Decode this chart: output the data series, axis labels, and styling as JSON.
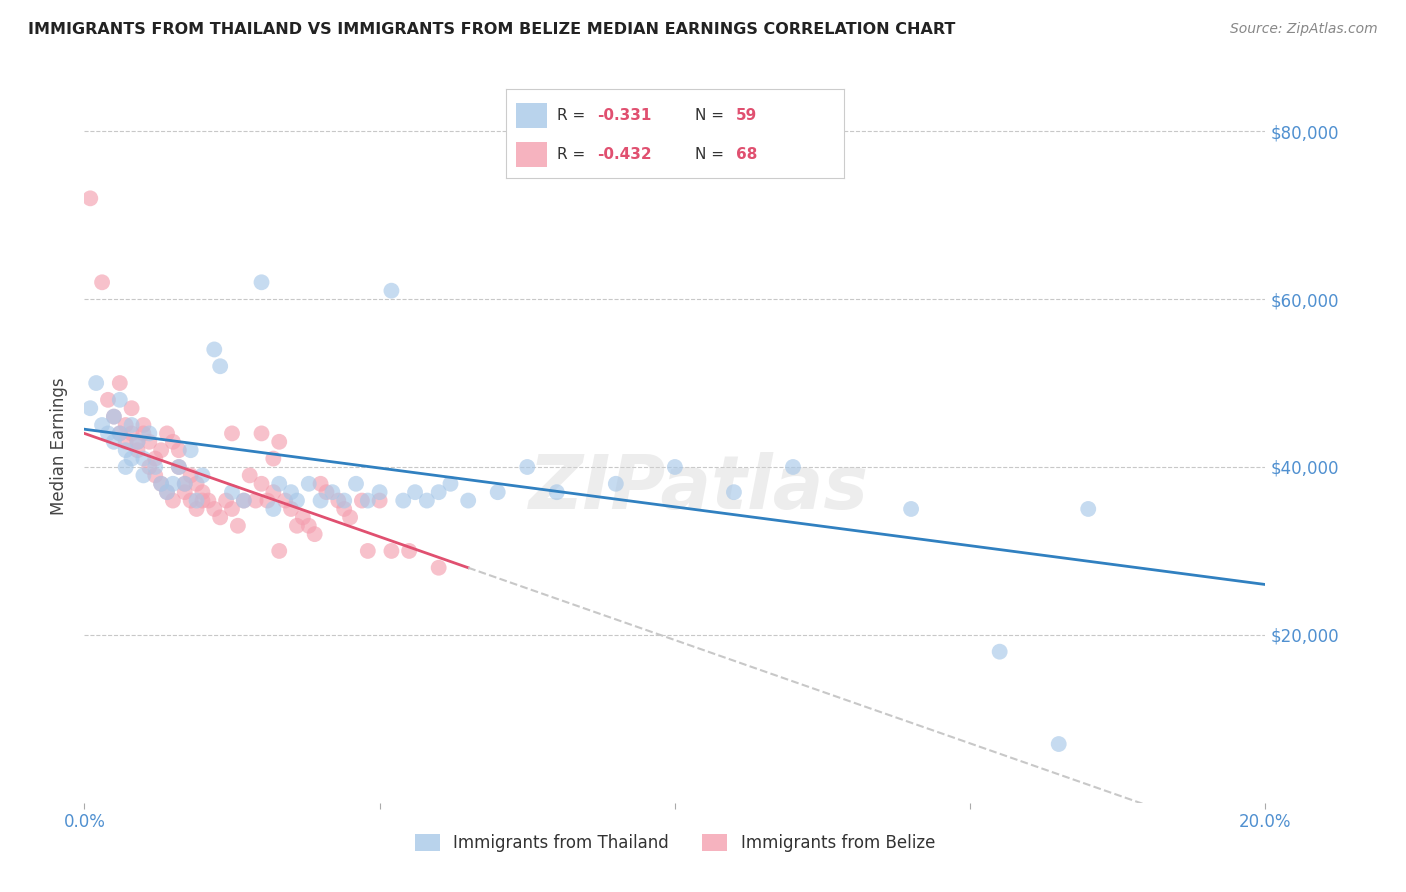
{
  "title": "IMMIGRANTS FROM THAILAND VS IMMIGRANTS FROM BELIZE MEDIAN EARNINGS CORRELATION CHART",
  "source": "Source: ZipAtlas.com",
  "ylabel": "Median Earnings",
  "xlim": [
    0.0,
    0.2
  ],
  "ylim": [
    0,
    85000
  ],
  "yticks": [
    20000,
    40000,
    60000,
    80000
  ],
  "ytick_labels": [
    "$20,000",
    "$40,000",
    "$60,000",
    "$80,000"
  ],
  "xticks": [
    0.0,
    0.05,
    0.1,
    0.15,
    0.2
  ],
  "xtick_labels": [
    "0.0%",
    "",
    "",
    "",
    "20.0%"
  ],
  "thailand_color": "#a8c8e8",
  "belize_color": "#f4a0b0",
  "thailand_line_color": "#3080c0",
  "belize_line_color": "#e05070",
  "trend_ext_color": "#c8c8c8",
  "legend_thailand": "Immigrants from Thailand",
  "legend_belize": "Immigrants from Belize",
  "R_thailand": -0.331,
  "N_thailand": 59,
  "R_belize": -0.432,
  "N_belize": 68,
  "watermark": "ZIPatlas",
  "background_color": "#ffffff",
  "grid_color": "#c8c8c8",
  "title_color": "#222222",
  "axis_color": "#5090d0",
  "thailand_points": [
    [
      0.001,
      47000
    ],
    [
      0.002,
      50000
    ],
    [
      0.003,
      45000
    ],
    [
      0.004,
      44000
    ],
    [
      0.005,
      46000
    ],
    [
      0.005,
      43000
    ],
    [
      0.006,
      48000
    ],
    [
      0.006,
      44000
    ],
    [
      0.007,
      42000
    ],
    [
      0.007,
      40000
    ],
    [
      0.008,
      45000
    ],
    [
      0.008,
      41000
    ],
    [
      0.009,
      43000
    ],
    [
      0.01,
      41000
    ],
    [
      0.01,
      39000
    ],
    [
      0.011,
      44000
    ],
    [
      0.012,
      40000
    ],
    [
      0.013,
      38000
    ],
    [
      0.014,
      37000
    ],
    [
      0.015,
      38000
    ],
    [
      0.016,
      40000
    ],
    [
      0.017,
      38000
    ],
    [
      0.018,
      42000
    ],
    [
      0.019,
      36000
    ],
    [
      0.02,
      39000
    ],
    [
      0.022,
      54000
    ],
    [
      0.023,
      52000
    ],
    [
      0.025,
      37000
    ],
    [
      0.027,
      36000
    ],
    [
      0.03,
      62000
    ],
    [
      0.032,
      35000
    ],
    [
      0.033,
      38000
    ],
    [
      0.035,
      37000
    ],
    [
      0.036,
      36000
    ],
    [
      0.038,
      38000
    ],
    [
      0.04,
      36000
    ],
    [
      0.042,
      37000
    ],
    [
      0.044,
      36000
    ],
    [
      0.046,
      38000
    ],
    [
      0.048,
      36000
    ],
    [
      0.05,
      37000
    ],
    [
      0.052,
      61000
    ],
    [
      0.054,
      36000
    ],
    [
      0.056,
      37000
    ],
    [
      0.058,
      36000
    ],
    [
      0.06,
      37000
    ],
    [
      0.062,
      38000
    ],
    [
      0.065,
      36000
    ],
    [
      0.07,
      37000
    ],
    [
      0.075,
      40000
    ],
    [
      0.08,
      37000
    ],
    [
      0.09,
      38000
    ],
    [
      0.1,
      40000
    ],
    [
      0.11,
      37000
    ],
    [
      0.12,
      40000
    ],
    [
      0.14,
      35000
    ],
    [
      0.155,
      18000
    ],
    [
      0.165,
      7000
    ],
    [
      0.17,
      35000
    ]
  ],
  "belize_points": [
    [
      0.001,
      72000
    ],
    [
      0.003,
      62000
    ],
    [
      0.004,
      48000
    ],
    [
      0.005,
      46000
    ],
    [
      0.006,
      50000
    ],
    [
      0.006,
      44000
    ],
    [
      0.007,
      45000
    ],
    [
      0.007,
      43000
    ],
    [
      0.008,
      47000
    ],
    [
      0.008,
      44000
    ],
    [
      0.009,
      42000
    ],
    [
      0.009,
      43000
    ],
    [
      0.01,
      45000
    ],
    [
      0.01,
      44000
    ],
    [
      0.011,
      43000
    ],
    [
      0.011,
      40000
    ],
    [
      0.012,
      41000
    ],
    [
      0.012,
      39000
    ],
    [
      0.013,
      42000
    ],
    [
      0.013,
      38000
    ],
    [
      0.014,
      44000
    ],
    [
      0.014,
      37000
    ],
    [
      0.015,
      43000
    ],
    [
      0.015,
      36000
    ],
    [
      0.016,
      42000
    ],
    [
      0.016,
      40000
    ],
    [
      0.017,
      38000
    ],
    [
      0.017,
      37000
    ],
    [
      0.018,
      39000
    ],
    [
      0.018,
      36000
    ],
    [
      0.019,
      38000
    ],
    [
      0.019,
      35000
    ],
    [
      0.02,
      37000
    ],
    [
      0.02,
      36000
    ],
    [
      0.021,
      36000
    ],
    [
      0.022,
      35000
    ],
    [
      0.023,
      34000
    ],
    [
      0.024,
      36000
    ],
    [
      0.025,
      35000
    ],
    [
      0.025,
      44000
    ],
    [
      0.026,
      33000
    ],
    [
      0.027,
      36000
    ],
    [
      0.028,
      39000
    ],
    [
      0.029,
      36000
    ],
    [
      0.03,
      38000
    ],
    [
      0.03,
      44000
    ],
    [
      0.031,
      36000
    ],
    [
      0.032,
      37000
    ],
    [
      0.032,
      41000
    ],
    [
      0.033,
      30000
    ],
    [
      0.033,
      43000
    ],
    [
      0.034,
      36000
    ],
    [
      0.035,
      35000
    ],
    [
      0.036,
      33000
    ],
    [
      0.037,
      34000
    ],
    [
      0.038,
      33000
    ],
    [
      0.039,
      32000
    ],
    [
      0.04,
      38000
    ],
    [
      0.041,
      37000
    ],
    [
      0.043,
      36000
    ],
    [
      0.044,
      35000
    ],
    [
      0.045,
      34000
    ],
    [
      0.047,
      36000
    ],
    [
      0.048,
      30000
    ],
    [
      0.05,
      36000
    ],
    [
      0.052,
      30000
    ],
    [
      0.055,
      30000
    ],
    [
      0.06,
      28000
    ]
  ]
}
